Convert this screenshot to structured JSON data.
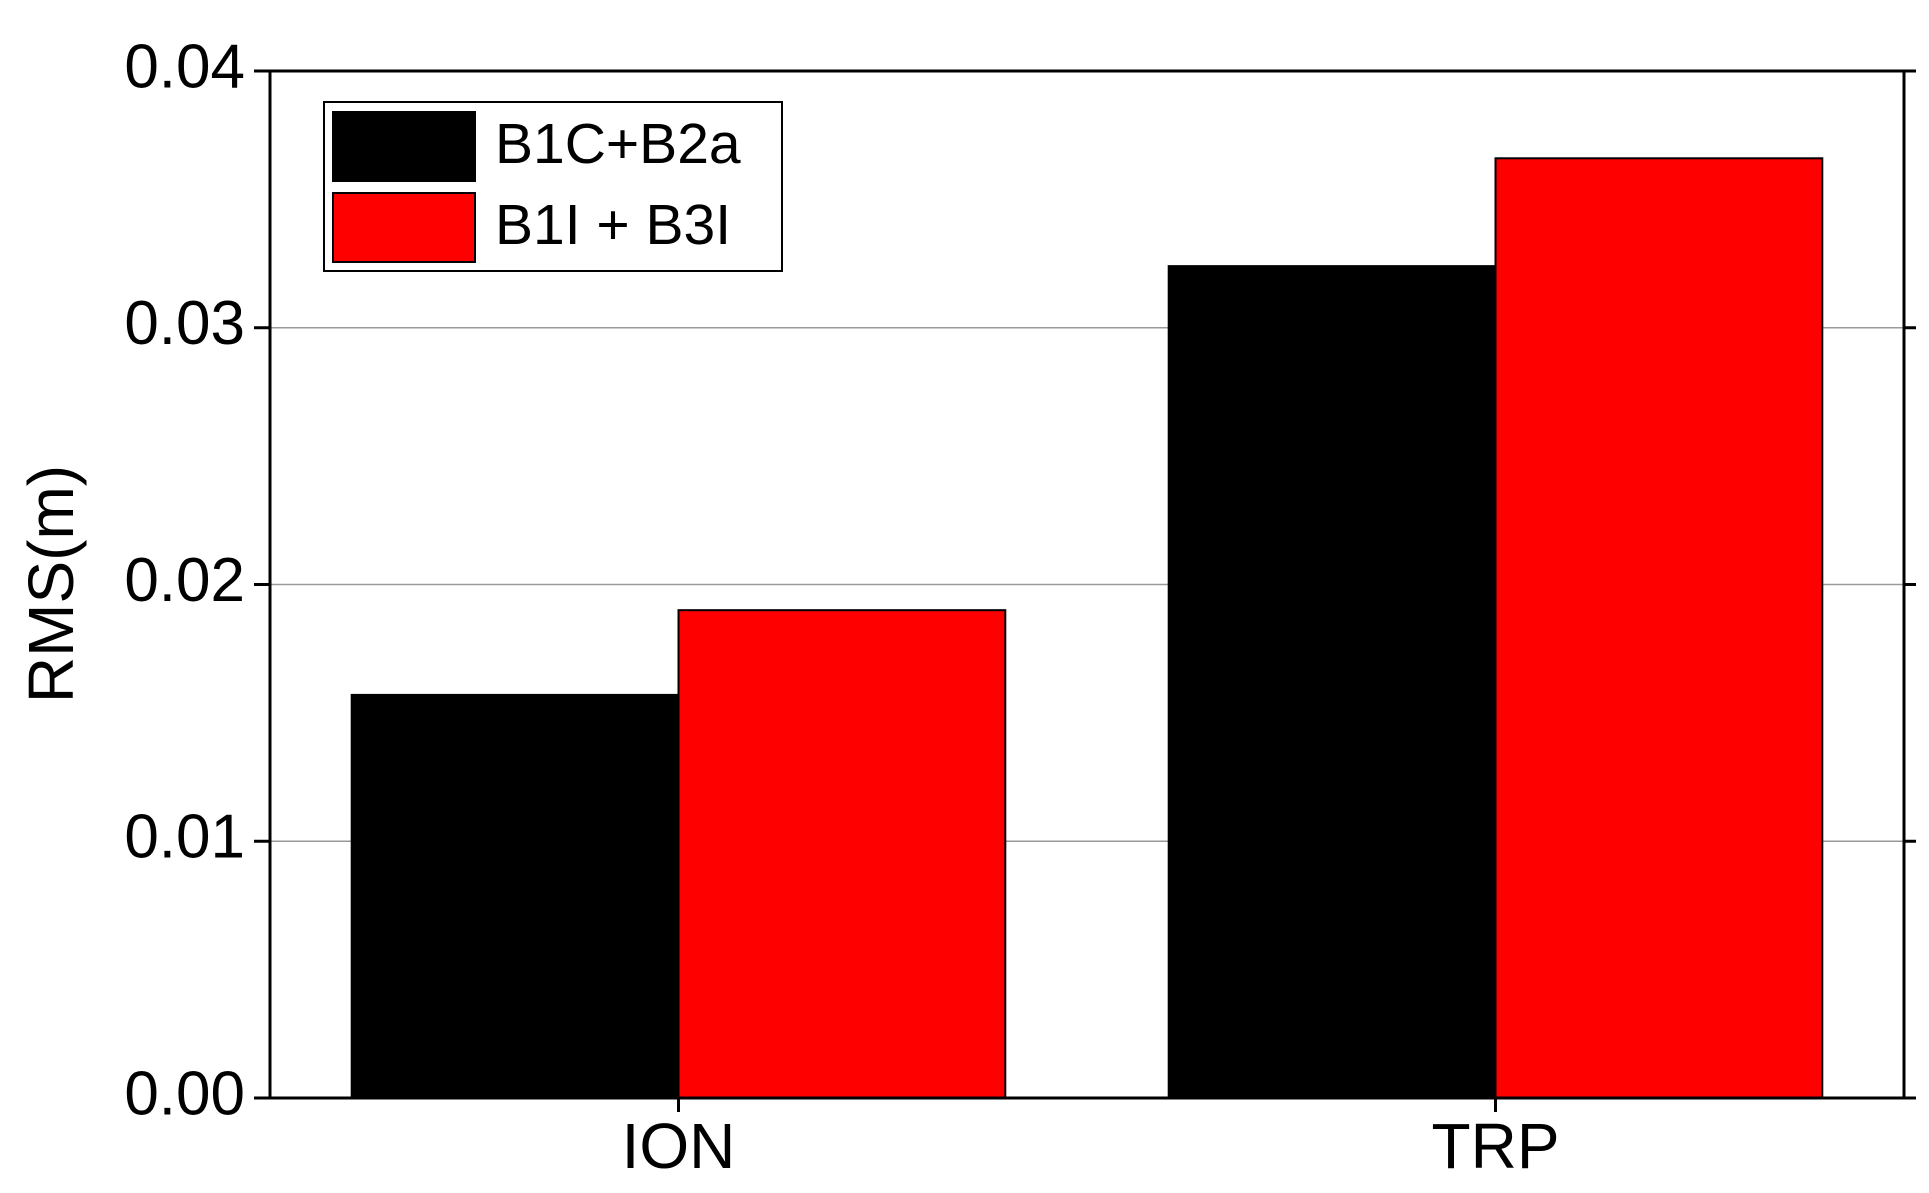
{
  "chart_data": {
    "type": "bar",
    "categories": [
      "ION",
      "TRP"
    ],
    "series": [
      {
        "name": "B1C+B2a",
        "color": "#000000",
        "values": [
          0.0157,
          0.0324
        ]
      },
      {
        "name": "B1I + B3I",
        "color": "#ff0000",
        "values": [
          0.019,
          0.0366
        ]
      }
    ],
    "y_label": "RMS(m)",
    "ylim": [
      0,
      0.04
    ],
    "yticks": [
      {
        "value": 0,
        "label": "0.00"
      },
      0.01,
      0.02,
      0.03,
      0.04
    ],
    "grid": true,
    "legend": "top-left"
  }
}
